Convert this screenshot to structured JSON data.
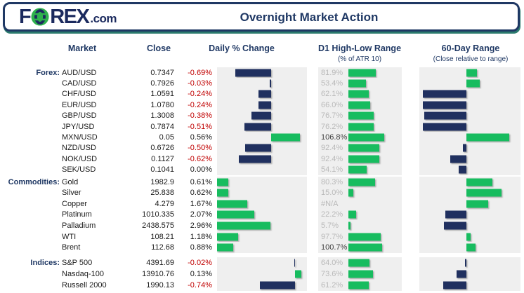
{
  "header": {
    "title": "Overnight Market Action",
    "logo": {
      "f": "F",
      "rex": "REX",
      "tld": ".com"
    }
  },
  "columns": {
    "market": "Market",
    "close": "Close",
    "daily": "Daily % Change",
    "d1": "D1 High-Low Range",
    "d1_sub": "(% of ATR 10)",
    "sixty": "60-Day Range",
    "sixty_sub": "(Close relative to range)"
  },
  "colors": {
    "navy_text": "#1f3864",
    "bar_navy": "#20305f",
    "bar_green": "#17bc5f",
    "logo_green": "#2eb24d",
    "negative_red": "#c00000",
    "label_gray": "#b9b9b9",
    "label_dark": "#3f3f3f",
    "block_bg": "#efefef",
    "header_shadow_teal": "#2b7a6e"
  },
  "table": {
    "groups": [
      {
        "label": "Forex:",
        "rows": [
          {
            "market": "AUD/USD",
            "close": "0.7347",
            "daily_label": "-0.69%",
            "d1_label": "81.9%"
          },
          {
            "market": "CAD/USD",
            "close": "0.7926",
            "daily_label": "-0.03%",
            "d1_label": "53.4%"
          },
          {
            "market": "CHF/USD",
            "close": "1.0591",
            "daily_label": "-0.24%",
            "d1_label": "62.1%"
          },
          {
            "market": "EUR/USD",
            "close": "1.0780",
            "daily_label": "-0.24%",
            "d1_label": "66.0%"
          },
          {
            "market": "GBP/USD",
            "close": "1.3008",
            "daily_label": "-0.38%",
            "d1_label": "76.7%"
          },
          {
            "market": "JPY/USD",
            "close": "0.7874",
            "daily_label": "-0.51%",
            "d1_label": "76.2%"
          },
          {
            "market": "MXN/USD",
            "close": "0.05",
            "daily_label": "0.56%",
            "d1_label": "106.8%"
          },
          {
            "market": "NZD/USD",
            "close": "0.6726",
            "daily_label": "-0.50%",
            "d1_label": "92.4%"
          },
          {
            "market": "NOK/USD",
            "close": "0.1127",
            "daily_label": "-0.62%",
            "d1_label": "92.4%"
          },
          {
            "market": "SEK/USD",
            "close": "0.1041",
            "daily_label": "0.00%",
            "d1_label": "54.1%"
          }
        ]
      },
      {
        "label": "Commodities:",
        "rows": [
          {
            "market": "Gold",
            "close": "1982.9",
            "daily_label": "0.61%",
            "d1_label": "80.3%"
          },
          {
            "market": "Silver",
            "close": "25.838",
            "daily_label": "0.62%",
            "d1_label": "15.0%"
          },
          {
            "market": "Copper",
            "close": "4.279",
            "daily_label": "1.67%",
            "d1_label": "#N/A"
          },
          {
            "market": "Platinum",
            "close": "1010.335",
            "daily_label": "2.07%",
            "d1_label": "22.2%"
          },
          {
            "market": "Palladium",
            "close": "2438.575",
            "daily_label": "2.96%",
            "d1_label": "5.7%"
          },
          {
            "market": "WTI",
            "close": "108.21",
            "daily_label": "1.18%",
            "d1_label": "97.7%"
          },
          {
            "market": "Brent",
            "close": "112.68",
            "daily_label": "0.88%",
            "d1_label": "100.7%"
          }
        ]
      },
      {
        "label": "Indices:",
        "rows": [
          {
            "market": "S&P 500",
            "close": "4391.69",
            "daily_label": "-0.02%",
            "d1_label": "64.0%"
          },
          {
            "market": "Nasdaq-100",
            "close": "13910.76",
            "daily_label": "0.13%",
            "d1_label": "73.6%"
          },
          {
            "market": "Russell 2000",
            "close": "1990.13",
            "daily_label": "-0.74%",
            "d1_label": "61.2%"
          }
        ]
      }
    ]
  },
  "chart_data": [
    {
      "id": "daily_pct_change",
      "type": "bar",
      "orientation": "horizontal",
      "title": "Daily % Change",
      "value_unit": "%",
      "positive_color": "#17bc5f",
      "negative_color": "#20305f",
      "series": [
        {
          "name": "Forex",
          "xlim": [
            -1.05,
            0.7
          ],
          "categories": [
            "AUD/USD",
            "CAD/USD",
            "CHF/USD",
            "EUR/USD",
            "GBP/USD",
            "JPY/USD",
            "MXN/USD",
            "NZD/USD",
            "NOK/USD",
            "SEK/USD"
          ],
          "values": [
            -0.69,
            -0.03,
            -0.24,
            -0.24,
            -0.38,
            -0.51,
            0.56,
            -0.5,
            -0.62,
            0.0
          ]
        },
        {
          "name": "Commodities",
          "xlim": [
            0,
            5
          ],
          "categories": [
            "Gold",
            "Silver",
            "Copper",
            "Platinum",
            "Palladium",
            "WTI",
            "Brent"
          ],
          "values": [
            0.61,
            0.62,
            1.67,
            2.07,
            2.96,
            1.18,
            0.88
          ]
        },
        {
          "name": "Indices",
          "xlim": [
            -1.65,
            0.25
          ],
          "categories": [
            "S&P 500",
            "Nasdaq-100",
            "Russell 2000"
          ],
          "values": [
            -0.02,
            0.13,
            -0.74
          ]
        }
      ]
    },
    {
      "id": "d1_high_low_range",
      "type": "bar",
      "orientation": "horizontal",
      "title": "D1 High-Low Range",
      "subtitle": "(% of ATR 10)",
      "value_unit": "% of ATR 10",
      "xlim": [
        0,
        160
      ],
      "bar_color": "#17bc5f",
      "strong_label_threshold": 100,
      "na_text": "#N/A",
      "series": [
        {
          "name": "Forex",
          "values": [
            81.9,
            53.4,
            62.1,
            66.0,
            76.7,
            76.2,
            106.8,
            92.4,
            92.4,
            54.1
          ]
        },
        {
          "name": "Commodities",
          "values": [
            80.3,
            15.0,
            null,
            22.2,
            5.7,
            97.7,
            100.7
          ]
        },
        {
          "name": "Indices",
          "values": [
            64.0,
            73.6,
            61.2
          ]
        }
      ]
    },
    {
      "id": "sixty_day_range",
      "type": "bar",
      "orientation": "horizontal",
      "title": "60-Day Range",
      "subtitle": "(Close relative to range)",
      "note": "signed fraction of half-range from midpoint; positive=green right, negative=navy left (estimated from bar pixels)",
      "xlim": [
        -1,
        1
      ],
      "positive_color": "#17bc5f",
      "negative_color": "#20305f",
      "series": [
        {
          "name": "Forex",
          "values": [
            0.2,
            0.26,
            -0.92,
            -0.92,
            -0.89,
            -0.92,
            0.82,
            -0.08,
            -0.35,
            -0.16
          ]
        },
        {
          "name": "Commodities",
          "values": [
            0.5,
            0.68,
            0.42,
            -0.45,
            -0.48,
            0.08,
            0.18
          ]
        },
        {
          "name": "Indices",
          "values": [
            -0.03,
            -0.21,
            -0.5
          ]
        }
      ]
    }
  ]
}
